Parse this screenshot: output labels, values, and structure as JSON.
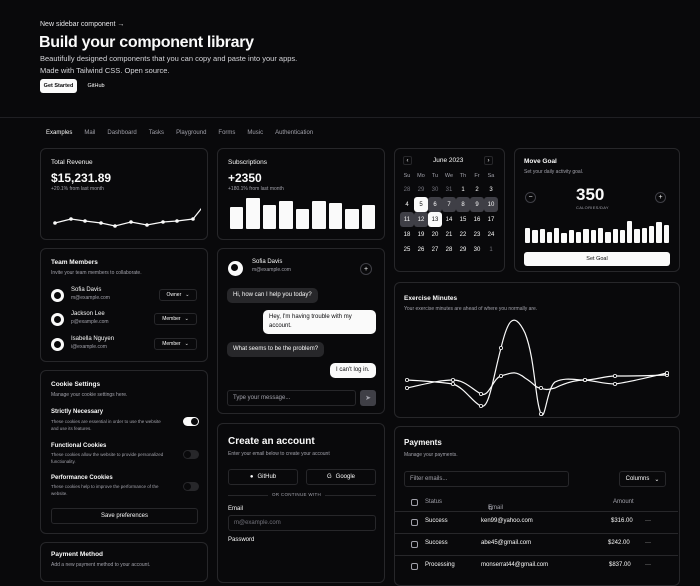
{
  "hero": {
    "announcement": "New sidebar component →",
    "title": "Build your component library",
    "subtitle_line1": "Beautifully designed components that you can copy and paste into your apps.",
    "subtitle_line2": "Made with Tailwind CSS. Open source.",
    "get_started": "Get Started",
    "github": "GitHub"
  },
  "tabs": [
    "Examples",
    "Mail",
    "Dashboard",
    "Tasks",
    "Playground",
    "Forms",
    "Music",
    "Authentication"
  ],
  "revenue": {
    "label": "Total Revenue",
    "value": "$15,231.89",
    "delta": "+20.1% from last month"
  },
  "subs": {
    "label": "Subscriptions",
    "value": "+2350",
    "delta": "+180.1% from last month"
  },
  "calendar": {
    "month": "June 2023",
    "days": [
      "Su",
      "Mo",
      "Tu",
      "We",
      "Th",
      "Fr",
      "Sa"
    ],
    "weeks": [
      [
        "28",
        "29",
        "30",
        "31",
        "1",
        "2",
        "3"
      ],
      [
        "4",
        "5",
        "6",
        "7",
        "8",
        "9",
        "10"
      ],
      [
        "11",
        "12",
        "13",
        "14",
        "15",
        "16",
        "17"
      ],
      [
        "18",
        "19",
        "20",
        "21",
        "22",
        "23",
        "24"
      ],
      [
        "25",
        "26",
        "27",
        "28",
        "29",
        "30",
        "1"
      ]
    ]
  },
  "goal": {
    "title": "Move Goal",
    "subtitle": "Set your daily activity goal.",
    "value": "350",
    "unit": "CALORIES/DAY",
    "minus": "−",
    "plus": "+",
    "button": "Set Goal",
    "bar_levels": [
      0.55,
      0.45,
      0.5,
      0.4,
      0.55,
      0.35,
      0.45,
      0.4,
      0.5,
      0.45,
      0.55,
      0.4,
      0.5,
      0.45,
      0.8,
      0.5,
      0.55,
      0.6,
      0.75,
      0.65
    ]
  },
  "team": {
    "title": "Team Members",
    "subtitle": "Invite your team members to collaborate.",
    "members": [
      {
        "name": "Sofia Davis",
        "email": "m@example.com",
        "role": "Owner"
      },
      {
        "name": "Jackson Lee",
        "email": "p@example.com",
        "role": "Member"
      },
      {
        "name": "Isabella Nguyen",
        "email": "i@example.com",
        "role": "Member"
      }
    ]
  },
  "chat": {
    "name": "Sofia Davis",
    "email": "m@example.com",
    "add": "+",
    "messages": [
      {
        "text": "Hi, how can I help you today?",
        "side": "in"
      },
      {
        "text": "Hey, I'm having trouble with my account.",
        "side": "out"
      },
      {
        "text": "What seems to be the problem?",
        "side": "in"
      },
      {
        "text": "I can't log in.",
        "side": "out"
      }
    ],
    "placeholder": "Type your message..."
  },
  "exercise": {
    "title": "Exercise Minutes",
    "subtitle": "Your exercise minutes are ahead of where you normally are."
  },
  "cookie": {
    "title": "Cookie Settings",
    "subtitle": "Manage your cookie settings here.",
    "items": [
      {
        "name": "Strictly Necessary",
        "desc": "These cookies are essential in order to use the website and use its features.",
        "on": true
      },
      {
        "name": "Functional Cookies",
        "desc": "These cookies allow the website to provide personalized functionality.",
        "on": false
      },
      {
        "name": "Performance Cookies",
        "desc": "These cookies help to improve the performance of the website.",
        "on": false
      }
    ],
    "button": "Save preferences"
  },
  "account": {
    "title": "Create an account",
    "subtitle": "Enter your email below to create your account",
    "github": "GitHub",
    "google": "Google",
    "or": "OR CONTINUE WITH",
    "email_label": "Email",
    "email_placeholder": "m@example.com",
    "password_label": "Password"
  },
  "payments": {
    "title": "Payments",
    "subtitle": "Manage your payments.",
    "filter": "Filter emails...",
    "columns": "Columns",
    "headers": [
      "Status",
      "Email",
      "Amount"
    ],
    "rows": [
      {
        "status": "Success",
        "email": "ken99@yahoo.com",
        "amount": "$316.00"
      },
      {
        "status": "Success",
        "email": "abe45@gmail.com",
        "amount": "$242.00"
      },
      {
        "status": "Processing",
        "email": "monserrat44@gmail.com",
        "amount": "$837.00"
      }
    ]
  },
  "payment_method": {
    "title": "Payment Method",
    "subtitle": "Add a new payment method to your account."
  }
}
